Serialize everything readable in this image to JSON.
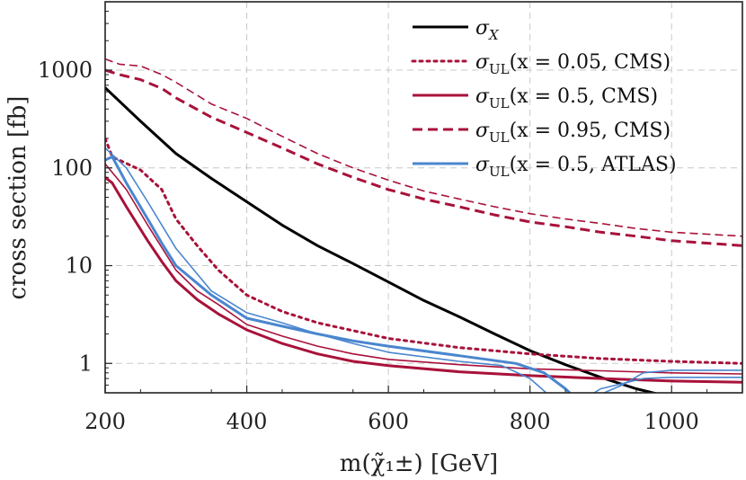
{
  "chart_data": {
    "type": "line",
    "xlabel": "m(χ̃₁±) [GeV]",
    "ylabel": "cross section [fb]",
    "xlim": [
      200,
      1100
    ],
    "ylim": [
      0.5,
      5000
    ],
    "yscale": "log",
    "grid": true,
    "legend_position": "top-right",
    "x_ticks": [
      200,
      400,
      600,
      800,
      1000
    ],
    "x_tick_labels": [
      "200",
      "400",
      "600",
      "800",
      "1000"
    ],
    "y_ticks": [
      1,
      10,
      100,
      1000
    ],
    "y_tick_labels": [
      "1",
      "10",
      "100",
      "1000"
    ],
    "series": [
      {
        "name": "σX",
        "legend_main": "σ",
        "legend_sub": "X",
        "legend_args": "",
        "color": "#000000",
        "style": "solid",
        "width": 3,
        "points": [
          [
            200,
            660
          ],
          [
            250,
            300
          ],
          [
            300,
            140
          ],
          [
            350,
            78
          ],
          [
            400,
            45
          ],
          [
            450,
            26
          ],
          [
            500,
            16
          ],
          [
            550,
            10.5
          ],
          [
            600,
            6.8
          ],
          [
            650,
            4.4
          ],
          [
            700,
            3.0
          ],
          [
            750,
            2.0
          ],
          [
            800,
            1.35
          ],
          [
            850,
            0.97
          ],
          [
            900,
            0.72
          ],
          [
            950,
            0.55
          ],
          [
            1000,
            0.45
          ],
          [
            1030,
            0.38
          ]
        ]
      },
      {
        "name": "σUL(x = 0.05, CMS)",
        "legend_main": "σ",
        "legend_sub": "UL",
        "legend_args": "(x = 0.05, CMS)",
        "color": "#a8123a",
        "style": "dotted",
        "width": 3,
        "points": [
          [
            200,
            200
          ],
          [
            210,
            130
          ],
          [
            250,
            95
          ],
          [
            280,
            60
          ],
          [
            300,
            30
          ],
          [
            330,
            16
          ],
          [
            360,
            9
          ],
          [
            400,
            5
          ],
          [
            450,
            3.4
          ],
          [
            500,
            2.6
          ],
          [
            600,
            1.8
          ],
          [
            700,
            1.45
          ],
          [
            800,
            1.25
          ],
          [
            900,
            1.12
          ],
          [
            1000,
            1.05
          ],
          [
            1100,
            1.0
          ]
        ]
      },
      {
        "name": "σUL(x = 0.5, CMS)",
        "legend_main": "σ",
        "legend_sub": "UL",
        "legend_args": "(x = 0.5, CMS)",
        "color": "#a8123a",
        "style": "solid",
        "width": 3,
        "points": [
          [
            200,
            80
          ],
          [
            210,
            70
          ],
          [
            230,
            40
          ],
          [
            260,
            18
          ],
          [
            280,
            11
          ],
          [
            300,
            7
          ],
          [
            330,
            4.5
          ],
          [
            360,
            3.2
          ],
          [
            400,
            2.2
          ],
          [
            450,
            1.6
          ],
          [
            500,
            1.25
          ],
          [
            550,
            1.05
          ],
          [
            600,
            0.95
          ],
          [
            700,
            0.82
          ],
          [
            800,
            0.75
          ],
          [
            900,
            0.7
          ],
          [
            1000,
            0.66
          ],
          [
            1100,
            0.64
          ]
        ]
      },
      {
        "name": "σUL(x = 0.5, CMS) thin",
        "color": "#a8123a",
        "style": "solid",
        "width": 1.6,
        "points": [
          [
            200,
            110
          ],
          [
            230,
            60
          ],
          [
            260,
            26
          ],
          [
            300,
            9
          ],
          [
            330,
            5.5
          ],
          [
            360,
            4
          ],
          [
            400,
            2.5
          ],
          [
            450,
            1.9
          ],
          [
            500,
            1.5
          ],
          [
            550,
            1.25
          ],
          [
            600,
            1.1
          ],
          [
            700,
            0.97
          ],
          [
            800,
            0.88
          ],
          [
            900,
            0.84
          ],
          [
            1000,
            0.8
          ],
          [
            1100,
            0.78
          ]
        ]
      },
      {
        "name": "σUL(x = 0.95, CMS)",
        "legend_main": "σ",
        "legend_sub": "UL",
        "legend_args": "(x = 0.95, CMS)",
        "color": "#a8123a",
        "style": "dashed",
        "width": 3,
        "points": [
          [
            200,
            1000
          ],
          [
            220,
            900
          ],
          [
            250,
            800
          ],
          [
            280,
            650
          ],
          [
            300,
            520
          ],
          [
            350,
            330
          ],
          [
            400,
            230
          ],
          [
            450,
            160
          ],
          [
            500,
            110
          ],
          [
            550,
            80
          ],
          [
            600,
            60
          ],
          [
            650,
            48
          ],
          [
            700,
            40
          ],
          [
            750,
            33
          ],
          [
            800,
            28
          ],
          [
            850,
            25
          ],
          [
            900,
            22
          ],
          [
            950,
            20
          ],
          [
            1000,
            18
          ],
          [
            1050,
            17
          ],
          [
            1100,
            16
          ]
        ]
      },
      {
        "name": "σUL(x = 0.95, CMS) thin",
        "color": "#a8123a",
        "style": "dashed",
        "width": 1.6,
        "points": [
          [
            200,
            1300
          ],
          [
            220,
            1150
          ],
          [
            250,
            1100
          ],
          [
            280,
            900
          ],
          [
            300,
            750
          ],
          [
            350,
            450
          ],
          [
            400,
            320
          ],
          [
            450,
            210
          ],
          [
            500,
            140
          ],
          [
            550,
            100
          ],
          [
            600,
            75
          ],
          [
            650,
            58
          ],
          [
            700,
            48
          ],
          [
            750,
            40
          ],
          [
            800,
            34
          ],
          [
            850,
            30
          ],
          [
            900,
            27
          ],
          [
            950,
            24
          ],
          [
            1000,
            22
          ],
          [
            1050,
            21
          ],
          [
            1100,
            20
          ]
        ]
      },
      {
        "name": "σUL(x = 0.5, ATLAS)",
        "legend_main": "σ",
        "legend_sub": "UL",
        "legend_args": "(x = 0.5, ATLAS)",
        "color": "#4a86cf",
        "style": "solid",
        "width": 3,
        "points": [
          [
            200,
            120
          ],
          [
            210,
            130
          ],
          [
            230,
            70
          ],
          [
            260,
            30
          ],
          [
            280,
            17
          ],
          [
            300,
            10
          ],
          [
            350,
            5
          ],
          [
            400,
            2.9
          ],
          [
            450,
            2.4
          ],
          [
            500,
            2.0
          ],
          [
            550,
            1.7
          ],
          [
            600,
            1.5
          ],
          [
            700,
            1.2
          ],
          [
            780,
            1.0
          ],
          [
            820,
            0.8
          ],
          [
            850,
            0.55
          ],
          [
            870,
            0.4
          ]
        ]
      },
      {
        "name": "σUL(x = 0.5, ATLAS) thin",
        "color": "#4a86cf",
        "style": "solid",
        "width": 1.6,
        "points": [
          [
            200,
            160
          ],
          [
            230,
            100
          ],
          [
            260,
            45
          ],
          [
            300,
            15
          ],
          [
            350,
            5.5
          ],
          [
            400,
            3.3
          ],
          [
            450,
            2.6
          ],
          [
            500,
            2.0
          ],
          [
            550,
            1.6
          ],
          [
            600,
            1.3
          ],
          [
            700,
            1.05
          ],
          [
            760,
            0.95
          ],
          [
            800,
            0.7
          ],
          [
            830,
            0.45
          ]
        ]
      },
      {
        "name": "σUL(x = 0.5, ATLAS) thin 2",
        "color": "#4a86cf",
        "style": "solid",
        "width": 1.6,
        "points": [
          [
            890,
            0.45
          ],
          [
            930,
            0.6
          ],
          [
            960,
            0.8
          ],
          [
            1000,
            0.85
          ],
          [
            1100,
            0.85
          ]
        ]
      },
      {
        "name": "σUL(x = 0.5, ATLAS) thin 3",
        "color": "#4a86cf",
        "style": "solid",
        "width": 1.6,
        "points": [
          [
            880,
            0.45
          ],
          [
            900,
            0.55
          ],
          [
            960,
            0.7
          ],
          [
            1000,
            0.72
          ],
          [
            1100,
            0.72
          ]
        ]
      }
    ]
  }
}
